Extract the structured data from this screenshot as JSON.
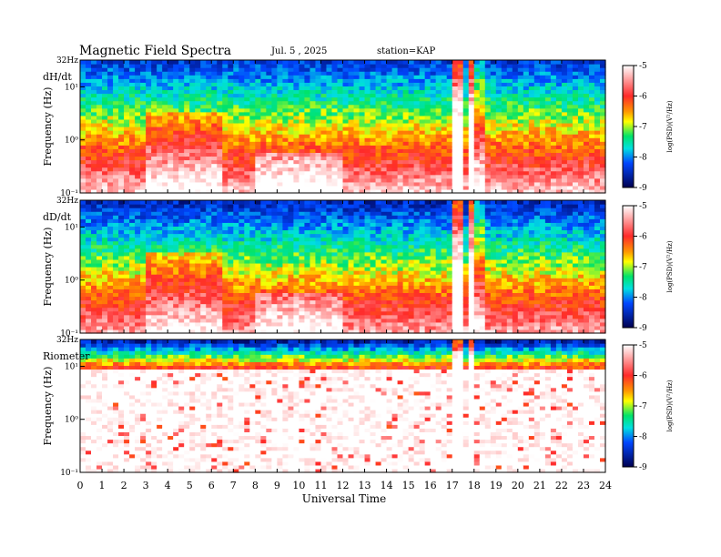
{
  "title": "Magnetic Field Spectra",
  "date": "Jul. 5 , 2025",
  "station": "station=KAP",
  "xlabel": "Universal Time",
  "ylabel": "Frequency (Hz)",
  "top_tick": "32Hz",
  "colorbar_label": "log(PSD)(V²/Hz)",
  "colors": {
    "white": "#ffffff",
    "red": "#ff2a2a",
    "yellow": "#ffff00",
    "green": "#00e36a",
    "cyan": "#00e0e0",
    "blue": "#0046ff",
    "navy": "#000050"
  },
  "chart_data": [
    {
      "type": "heatmap",
      "panel_label": "dH/dt",
      "x": {
        "min": 0,
        "max": 24,
        "ticks": [
          "0",
          "1",
          "2",
          "3",
          "4",
          "5",
          "6",
          "7",
          "8",
          "9",
          "10",
          "11",
          "12",
          "13",
          "14",
          "15",
          "16",
          "17",
          "18",
          "19",
          "20",
          "21",
          "22",
          "23",
          "24"
        ]
      },
      "y": {
        "scale": "log",
        "min": 0.1,
        "max": 32,
        "ticks": [
          "10⁻¹",
          "10⁰",
          "10¹"
        ],
        "top": "32Hz"
      },
      "colorbar": {
        "min": -9,
        "max": -5,
        "ticks": [
          "-5",
          "-6",
          "-7",
          "-8",
          "-9"
        ]
      },
      "features": [
        {
          "name": "broadband bursts",
          "x_range": [
            17.0,
            18.2
          ]
        },
        {
          "name": "pc1 band",
          "x_range": [
            3.0,
            6.5
          ],
          "y_range": [
            0.1,
            10
          ]
        }
      ]
    },
    {
      "type": "heatmap",
      "panel_label": "dD/dt",
      "x": {
        "min": 0,
        "max": 24
      },
      "y": {
        "scale": "log",
        "min": 0.1,
        "max": 32,
        "ticks": [
          "10⁻¹",
          "10⁰",
          "10¹"
        ],
        "top": "32Hz"
      },
      "colorbar": {
        "min": -9,
        "max": -5,
        "ticks": [
          "-5",
          "-6",
          "-7",
          "-8",
          "-9"
        ]
      },
      "features": [
        {
          "name": "broadband bursts",
          "x_range": [
            17.0,
            18.2
          ]
        }
      ]
    },
    {
      "type": "heatmap",
      "panel_label": "Riometer",
      "x": {
        "min": 0,
        "max": 24
      },
      "y": {
        "scale": "log",
        "min": 0.1,
        "max": 32,
        "ticks": [
          "10⁻¹",
          "10⁰",
          "10¹"
        ],
        "top": "32Hz"
      },
      "colorbar": {
        "min": -9,
        "max": -5,
        "ticks": [
          "-5",
          "-6",
          "-7",
          "-8",
          "-9"
        ]
      },
      "features": [
        {
          "name": "high band",
          "y_range": [
            8,
            32
          ]
        }
      ]
    }
  ]
}
